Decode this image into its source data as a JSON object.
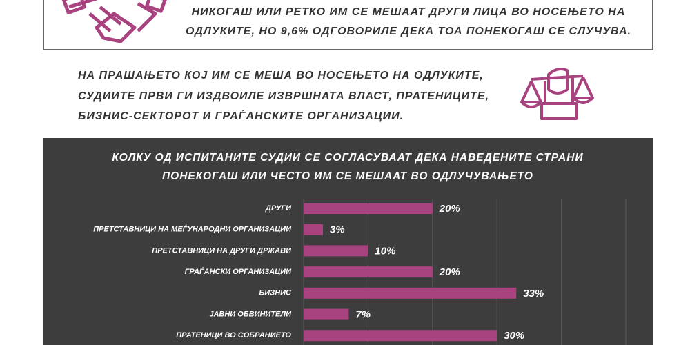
{
  "header": {
    "lines": [
      "НИКОГАШ ИЛИ РЕТКО ИМ СЕ МЕШААТ ДРУГИ ЛИЦА ВО НОСЕЊЕТО НА",
      "ОДЛУКИТЕ, НО 9,6% ОДГОВОРИЛЕ ДЕКА ТОА ПОНЕКОГАШ СЕ СЛУЧУВА."
    ]
  },
  "intro": {
    "lines": [
      "НА ПРАШАЊЕТО КОЈ ИМ СЕ МЕША ВО НОСЕЊЕТО НА ОДЛУКИТЕ,",
      "СУДИИТЕ ПРВИ ГИ ИЗДВОИЛЕ ИЗВРШНАТА ВЛАСТ, ПРАТЕНИЦИТЕ,",
      "БИЗНИС-СЕКТОРОТ И ГРАЃАНСКИТЕ ОРГАНИЗАЦИИ."
    ]
  },
  "chart_data": {
    "type": "bar",
    "orientation": "horizontal",
    "title": [
      "КОЛКУ ОД ИСПИТАНИТЕ СУДИИ СЕ СОГЛАСУВААТ ДЕКА НАВЕДЕНИТЕ СТРАНИ",
      "ПОНЕКОГАШ ИЛИ ЧЕСТО ИМ СЕ МЕШААТ ВО ОДЛУЧУВАЊЕТО"
    ],
    "categories": [
      "ДРУГИ",
      "ПРЕТСТАВНИЦИ НА МЕЃУНАРОДНИ ОРГАНИЗАЦИИ",
      "ПРЕТСТАВНИЦИ НА ДРУГИ ДРЖАВИ",
      "ГРАЃАНСКИ ОРГАНИЗАЦИИ",
      "БИЗНИС",
      "ЈАВНИ ОБВИНИТЕЛИ",
      "ПРАТЕНИЦИ ВО СОБРАНИЕТО"
    ],
    "values": [
      20,
      3,
      10,
      20,
      33,
      7,
      30
    ],
    "value_labels": [
      "20%",
      "3%",
      "10%",
      "20%",
      "33%",
      "7%",
      "30%"
    ],
    "color": "#a8437f",
    "xlim": [
      0,
      50
    ],
    "xticks": [
      0,
      10,
      20,
      30,
      40,
      50
    ],
    "grid": true
  }
}
